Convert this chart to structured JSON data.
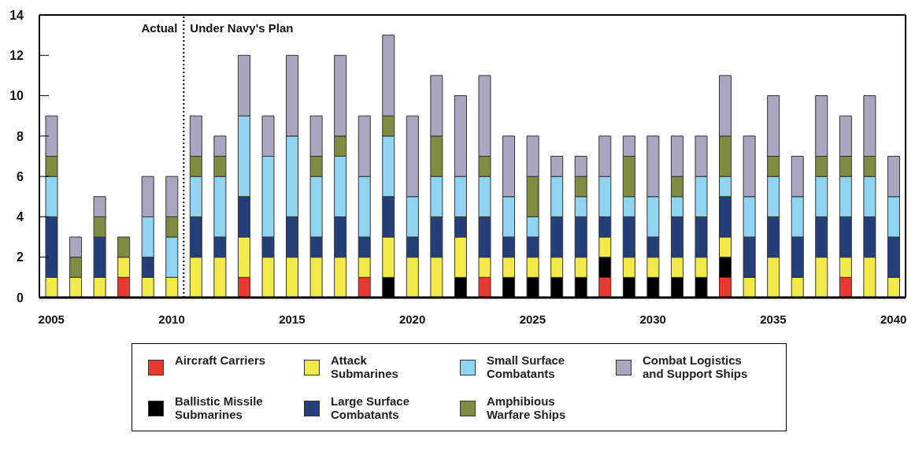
{
  "chart_data": {
    "type": "bar",
    "stacked": true,
    "x": [
      2005,
      2006,
      2007,
      2008,
      2009,
      2010,
      2011,
      2012,
      2013,
      2014,
      2015,
      2016,
      2017,
      2018,
      2019,
      2020,
      2021,
      2022,
      2023,
      2024,
      2025,
      2026,
      2027,
      2028,
      2029,
      2030,
      2031,
      2032,
      2033,
      2034,
      2035,
      2036,
      2037,
      2038,
      2039,
      2040
    ],
    "series": [
      {
        "name": "Aircraft Carriers",
        "color": "#e8392f",
        "values": [
          0,
          0,
          0,
          1,
          0,
          0,
          0,
          0,
          1,
          0,
          0,
          0,
          0,
          1,
          0,
          0,
          0,
          0,
          1,
          0,
          0,
          0,
          0,
          1,
          0,
          0,
          0,
          0,
          1,
          0,
          0,
          0,
          0,
          1,
          0,
          0
        ]
      },
      {
        "name": "Ballistic Missile Submarines",
        "color": "#000000",
        "values": [
          0,
          0,
          0,
          0,
          0,
          0,
          0,
          0,
          0,
          0,
          0,
          0,
          0,
          0,
          1,
          0,
          0,
          1,
          0,
          1,
          1,
          1,
          1,
          1,
          1,
          1,
          1,
          1,
          1,
          0,
          0,
          0,
          0,
          0,
          0,
          0
        ]
      },
      {
        "name": "Attack Submarines",
        "color": "#f2ea4a",
        "values": [
          1,
          1,
          1,
          1,
          1,
          1,
          2,
          2,
          2,
          2,
          2,
          2,
          2,
          1,
          2,
          2,
          2,
          2,
          1,
          1,
          1,
          1,
          1,
          1,
          1,
          1,
          1,
          1,
          1,
          1,
          2,
          1,
          2,
          1,
          2,
          1
        ]
      },
      {
        "name": "Large Surface Combatants",
        "color": "#253f7a",
        "values": [
          3,
          0,
          2,
          0,
          1,
          0,
          2,
          1,
          2,
          1,
          2,
          1,
          2,
          1,
          2,
          1,
          2,
          1,
          2,
          1,
          1,
          2,
          2,
          1,
          2,
          1,
          2,
          2,
          2,
          2,
          2,
          2,
          2,
          2,
          2,
          2
        ]
      },
      {
        "name": "Small Surface Combatants",
        "color": "#8fd4f0",
        "values": [
          2,
          0,
          0,
          0,
          2,
          2,
          2,
          3,
          4,
          4,
          4,
          3,
          3,
          3,
          3,
          2,
          2,
          2,
          2,
          2,
          1,
          2,
          1,
          2,
          1,
          2,
          1,
          2,
          1,
          2,
          2,
          2,
          2,
          2,
          2,
          2
        ]
      },
      {
        "name": "Amphibious Warfare Ships",
        "color": "#7f8c42",
        "values": [
          1,
          1,
          1,
          1,
          0,
          1,
          1,
          1,
          0,
          0,
          0,
          1,
          1,
          0,
          1,
          0,
          2,
          0,
          1,
          0,
          2,
          0,
          1,
          0,
          2,
          0,
          1,
          0,
          2,
          0,
          1,
          0,
          1,
          1,
          1,
          0
        ]
      },
      {
        "name": "Combat Logistics and Support Ships",
        "color": "#aaa6c0",
        "values": [
          2,
          1,
          1,
          0,
          2,
          2,
          2,
          1,
          3,
          2,
          4,
          2,
          4,
          3,
          4,
          4,
          3,
          4,
          4,
          3,
          2,
          1,
          1,
          2,
          1,
          3,
          2,
          2,
          3,
          3,
          3,
          2,
          3,
          2,
          3,
          2
        ]
      }
    ],
    "xlim": [
      2004.5,
      2040.5
    ],
    "xticks": [
      2005,
      2010,
      2015,
      2020,
      2025,
      2030,
      2035,
      2040
    ],
    "ylim": [
      0,
      14
    ],
    "yticks": [
      0,
      2,
      4,
      6,
      8,
      10,
      12,
      14
    ],
    "ref_lines": [
      {
        "axis": "x",
        "value": 2010.5,
        "line_style": "dotted",
        "color": "#000000"
      }
    ],
    "annotations": [
      "Actual",
      "Under Navy's Plan"
    ],
    "legend": "bottom",
    "grid": false
  }
}
